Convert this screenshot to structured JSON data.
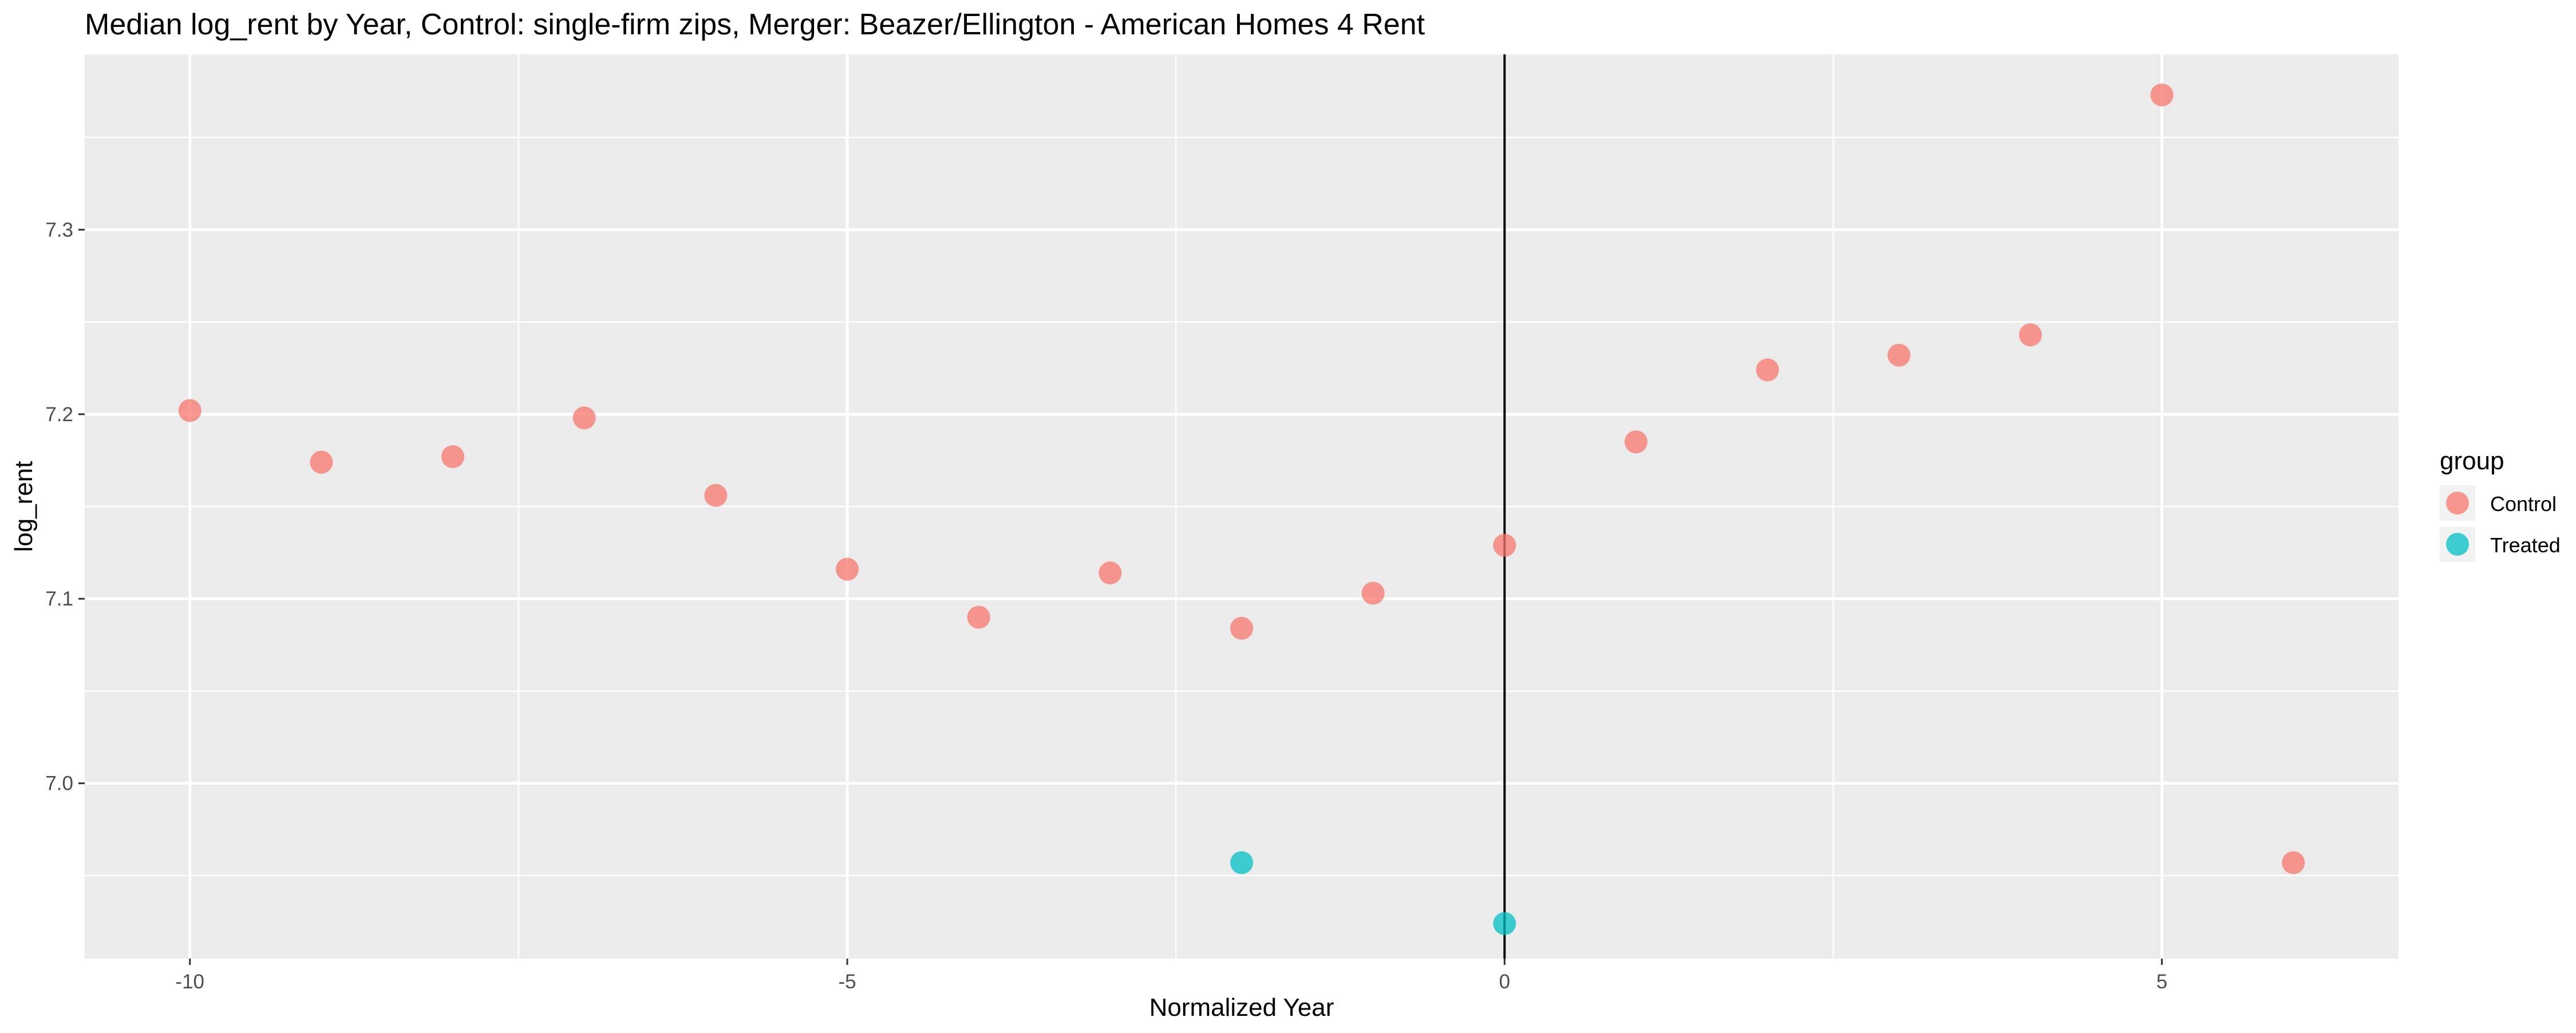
{
  "chart_data": {
    "type": "scatter",
    "title": "Median log_rent by Year, Control: single-firm zips, Merger: Beazer/Ellington - American Homes 4 Rent",
    "xlabel": "Normalized Year",
    "ylabel": "log_rent",
    "xlim": [
      -10.8,
      6.8
    ],
    "ylim": [
      6.905,
      7.395
    ],
    "x_ticks": [
      -10,
      -5,
      0,
      5
    ],
    "x_tick_labels": [
      "-10",
      "-5",
      "0",
      "5"
    ],
    "y_ticks": [
      7.0,
      7.1,
      7.2,
      7.3
    ],
    "y_tick_labels": [
      "7.0",
      "7.1",
      "7.2",
      "7.3"
    ],
    "grid": true,
    "vline_x": 0,
    "legend": {
      "title": "group",
      "position": "right",
      "entries": [
        {
          "label": "Control",
          "color": "#F8766D"
        },
        {
          "label": "Treated",
          "color": "#00BFC4"
        }
      ]
    },
    "series": [
      {
        "name": "Control",
        "color": "#F8766D",
        "x": [
          -10,
          -9,
          -8,
          -7,
          -6,
          -5,
          -4,
          -3,
          -2,
          -1,
          0,
          1,
          2,
          3,
          4,
          5,
          6
        ],
        "y": [
          7.202,
          7.174,
          7.177,
          7.198,
          7.156,
          7.116,
          7.09,
          7.114,
          7.084,
          7.103,
          7.129,
          7.185,
          7.224,
          7.232,
          7.243,
          7.373,
          6.957
        ]
      },
      {
        "name": "Treated",
        "color": "#00BFC4",
        "x": [
          -2,
          0
        ],
        "y": [
          6.957,
          6.924
        ]
      }
    ]
  }
}
